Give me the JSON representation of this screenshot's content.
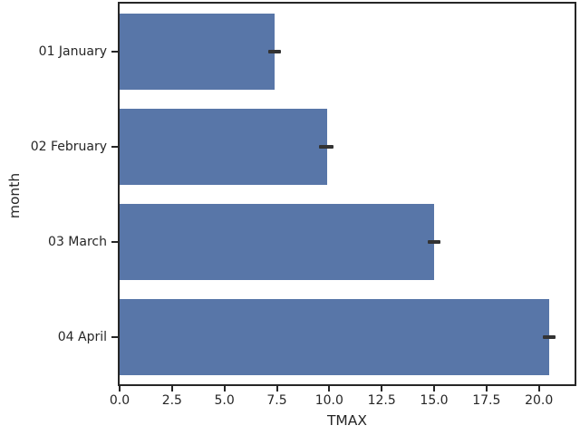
{
  "chart_data": {
    "type": "bar",
    "orientation": "horizontal",
    "title": "",
    "xlabel": "TMAX",
    "ylabel": "month",
    "categories": [
      "01 January",
      "02 February",
      "03 March",
      "04 April"
    ],
    "series": [
      {
        "name": "TMAX",
        "values": [
          7.4,
          9.9,
          15.0,
          20.5
        ],
        "error_low": [
          7.1,
          9.5,
          14.7,
          20.2
        ],
        "error_high": [
          7.7,
          10.2,
          15.3,
          20.8
        ]
      }
    ],
    "xlim": [
      0,
      21.7
    ],
    "xticks": [
      0.0,
      2.5,
      5.0,
      7.5,
      10.0,
      12.5,
      15.0,
      17.5,
      20.0
    ],
    "xtick_labels": [
      "0.0",
      "2.5",
      "5.0",
      "7.5",
      "10.0",
      "12.5",
      "15.0",
      "17.5",
      "20.0"
    ],
    "grid": false,
    "legend_position": "none",
    "bar_width_fraction": 0.8,
    "colors": {
      "bar": "#5876a8",
      "error_bar": "#333333",
      "axis": "#262626",
      "text": "#262626",
      "background": "#ffffff"
    }
  }
}
